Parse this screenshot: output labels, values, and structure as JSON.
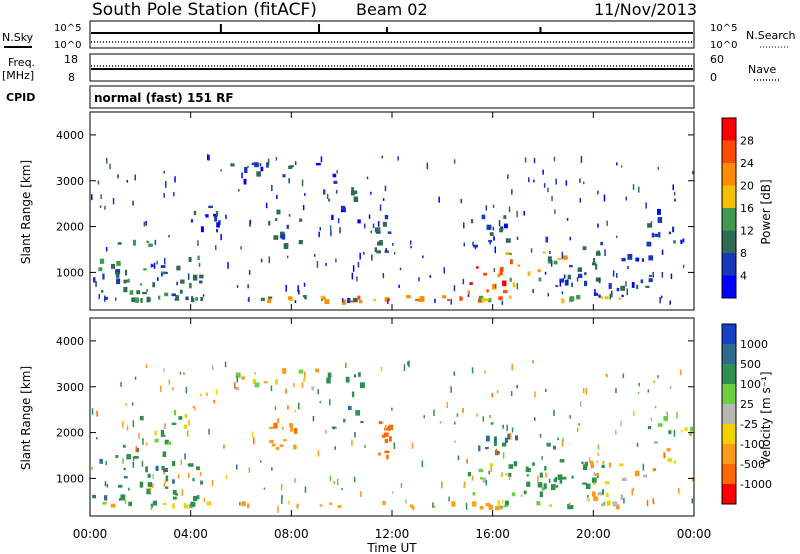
{
  "header": {
    "station": "South Pole Station (fitACF)",
    "beam": "Beam 02",
    "date": "11/Nov/2013"
  },
  "top_panels": {
    "nsky_label": "N.Sky",
    "nsky_ticks": [
      "10^5",
      "10^0"
    ],
    "nsearch_label": "N.Search",
    "nsearch_ticks": [
      "10^5",
      "10^0"
    ],
    "freq_label": "Freq.",
    "freq_unit": "[MHz]",
    "freq_ticks": [
      "18",
      "8"
    ],
    "nave_label": "Nave",
    "nave_ticks": [
      "60",
      "0"
    ],
    "cpid_label": "CPID",
    "cpid_text": "normal (fast) 151 RF"
  },
  "colorbars": {
    "power": {
      "label": "Power [dB]",
      "ticks": [
        "28",
        "24",
        "20",
        "16",
        "12",
        "8",
        "4"
      ],
      "colors": [
        "#ff0000",
        "#ff4a00",
        "#ff8c00",
        "#f2c200",
        "#3f9a4f",
        "#2f6b52",
        "#1738b8",
        "#0000ff"
      ]
    },
    "velocity": {
      "label": "Velocity [m s⁻¹]",
      "ticks": [
        "1000",
        "500",
        "100",
        "25",
        "-25",
        "-100",
        "-500",
        "-1000"
      ],
      "colors": [
        "#1640c8",
        "#2f6a8f",
        "#2f8f4f",
        "#6bcf3f",
        "#b8b8b0",
        "#f2d000",
        "#ff9a1a",
        "#ff6a00",
        "#ff0000"
      ]
    }
  },
  "chart_data": [
    {
      "type": "heatmap",
      "title": "Power",
      "ylabel": "Slant Range [km]",
      "xlabel": "Time UT",
      "x_ticks": [
        "00:00",
        "04:00",
        "08:00",
        "12:00",
        "16:00",
        "20:00",
        "00:00"
      ],
      "y_ticks": [
        1000,
        2000,
        3000,
        4000
      ],
      "ylim": [
        180,
        4500
      ],
      "xlim_hours": [
        0,
        24
      ],
      "colorbar_label": "Power [dB]",
      "colorbar_range": [
        0,
        30
      ],
      "blobs": [
        {
          "t": 0.4,
          "r": 420,
          "dt": 8,
          "dr": 40,
          "v": 10
        },
        {
          "t": 5.0,
          "r": 420,
          "dt": 12,
          "dr": 40,
          "v": 9
        },
        {
          "t": 10.5,
          "r": 410,
          "dt": 7,
          "dr": 60,
          "v": 22
        },
        {
          "t": 13.5,
          "r": 410,
          "dt": 6,
          "dr": 60,
          "v": 24
        },
        {
          "t": 18.3,
          "r": 420,
          "dt": 3,
          "dr": 50,
          "v": 16
        },
        {
          "t": 0.5,
          "r": 1100,
          "dt": 0.9,
          "dr": 550,
          "v": 9
        },
        {
          "t": 2.2,
          "r": 1100,
          "dt": 0.9,
          "dr": 650,
          "v": 12
        },
        {
          "t": 3.6,
          "r": 900,
          "dt": 0.8,
          "dr": 450,
          "v": 9
        },
        {
          "t": 4.6,
          "r": 2200,
          "dt": 0.6,
          "dr": 300,
          "v": 6
        },
        {
          "t": 7.3,
          "r": 3150,
          "dt": 1.8,
          "dr": 250,
          "v": 6
        },
        {
          "t": 7.7,
          "r": 1900,
          "dt": 0.7,
          "dr": 450,
          "v": 8
        },
        {
          "t": 10.0,
          "r": 2700,
          "dt": 0.8,
          "dr": 600,
          "v": 7
        },
        {
          "t": 11.6,
          "r": 1850,
          "dt": 0.3,
          "dr": 450,
          "v": 10
        },
        {
          "t": 16.5,
          "r": 900,
          "dt": 1.5,
          "dr": 350,
          "v": 25
        },
        {
          "t": 17.6,
          "r": 1100,
          "dt": 1.2,
          "dr": 400,
          "v": 17
        },
        {
          "t": 16.0,
          "r": 1900,
          "dt": 1.0,
          "dr": 350,
          "v": 7
        },
        {
          "t": 19.2,
          "r": 1250,
          "dt": 1.3,
          "dr": 550,
          "v": 8
        },
        {
          "t": 21.0,
          "r": 900,
          "dt": 1.5,
          "dr": 500,
          "v": 7
        },
        {
          "t": 23.0,
          "r": 1900,
          "dt": 0.9,
          "dr": 550,
          "v": 5
        }
      ]
    },
    {
      "type": "heatmap",
      "title": "Velocity",
      "ylabel": "Slant Range [km]",
      "xlabel": "Time UT",
      "x_ticks": [
        "00:00",
        "04:00",
        "08:00",
        "12:00",
        "16:00",
        "20:00",
        "00:00"
      ],
      "y_ticks": [
        1000,
        2000,
        3000,
        4000
      ],
      "ylim": [
        180,
        4500
      ],
      "xlim_hours": [
        0,
        24
      ],
      "colorbar_label": "Velocity [m s⁻¹]",
      "colorbar_range": [
        -1000,
        1000
      ],
      "blobs": [
        {
          "t": 0.4,
          "r": 420,
          "dt": 8,
          "dr": 40,
          "v": 60
        },
        {
          "t": 5.0,
          "r": 420,
          "dt": 10,
          "dr": 40,
          "v": -180
        },
        {
          "t": 13.5,
          "r": 410,
          "dt": 6,
          "dr": 60,
          "v": -320
        },
        {
          "t": 18.5,
          "r": 420,
          "dt": 5,
          "dr": 50,
          "v": 20
        },
        {
          "t": 0.5,
          "r": 1000,
          "dt": 0.9,
          "dr": 500,
          "v": 450
        },
        {
          "t": 2.3,
          "r": 1200,
          "dt": 1.0,
          "dr": 650,
          "v": 380
        },
        {
          "t": 3.6,
          "r": 900,
          "dt": 0.8,
          "dr": 450,
          "v": 280
        },
        {
          "t": 2.8,
          "r": 2100,
          "dt": 1.0,
          "dr": 350,
          "v": 0
        },
        {
          "t": 7.3,
          "r": 3150,
          "dt": 1.8,
          "dr": 250,
          "v": -60
        },
        {
          "t": 7.7,
          "r": 1850,
          "dt": 0.7,
          "dr": 450,
          "v": -380
        },
        {
          "t": 10.0,
          "r": 2700,
          "dt": 0.8,
          "dr": 600,
          "v": 420
        },
        {
          "t": 11.6,
          "r": 1800,
          "dt": 0.3,
          "dr": 450,
          "v": -700
        },
        {
          "t": 16.5,
          "r": 1000,
          "dt": 1.5,
          "dr": 350,
          "v": 80
        },
        {
          "t": 17.6,
          "r": 1200,
          "dt": 1.2,
          "dr": 400,
          "v": 250
        },
        {
          "t": 16.0,
          "r": 1900,
          "dt": 1.0,
          "dr": 350,
          "v": 520
        },
        {
          "t": 19.2,
          "r": 1250,
          "dt": 1.3,
          "dr": 550,
          "v": 350
        },
        {
          "t": 21.0,
          "r": 900,
          "dt": 1.5,
          "dr": 500,
          "v": -120
        },
        {
          "t": 23.0,
          "r": 1900,
          "dt": 0.9,
          "dr": 550,
          "v": 0
        }
      ]
    }
  ]
}
